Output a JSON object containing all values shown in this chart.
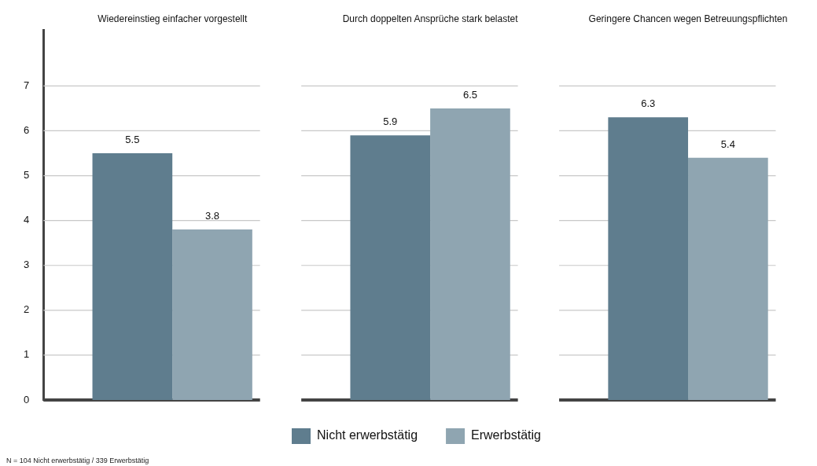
{
  "chart_data": {
    "type": "bar",
    "categories": [
      "Wiedereinstieg einfacher vorgestellt",
      "Durch doppelten Ansprüche stark belastet",
      "Geringere Chancen wegen Betreuungspflichten"
    ],
    "series": [
      {
        "name": "Nicht erwerbstätig",
        "color": "#5f7d8e",
        "values": [
          5.5,
          5.9,
          6.3
        ]
      },
      {
        "name": "Erwerbstätig",
        "color": "#8fa5b1",
        "values": [
          3.8,
          6.5,
          5.4
        ]
      }
    ],
    "ylim": [
      0,
      8.25
    ],
    "yticks": [
      0,
      1,
      2,
      3,
      4,
      5,
      6,
      7
    ],
    "grid": "y",
    "data_labels": true,
    "legend": "bottom",
    "annotations": [
      "N = 104 Nicht erwerbstätig / 339 Erwerbstätig"
    ]
  }
}
